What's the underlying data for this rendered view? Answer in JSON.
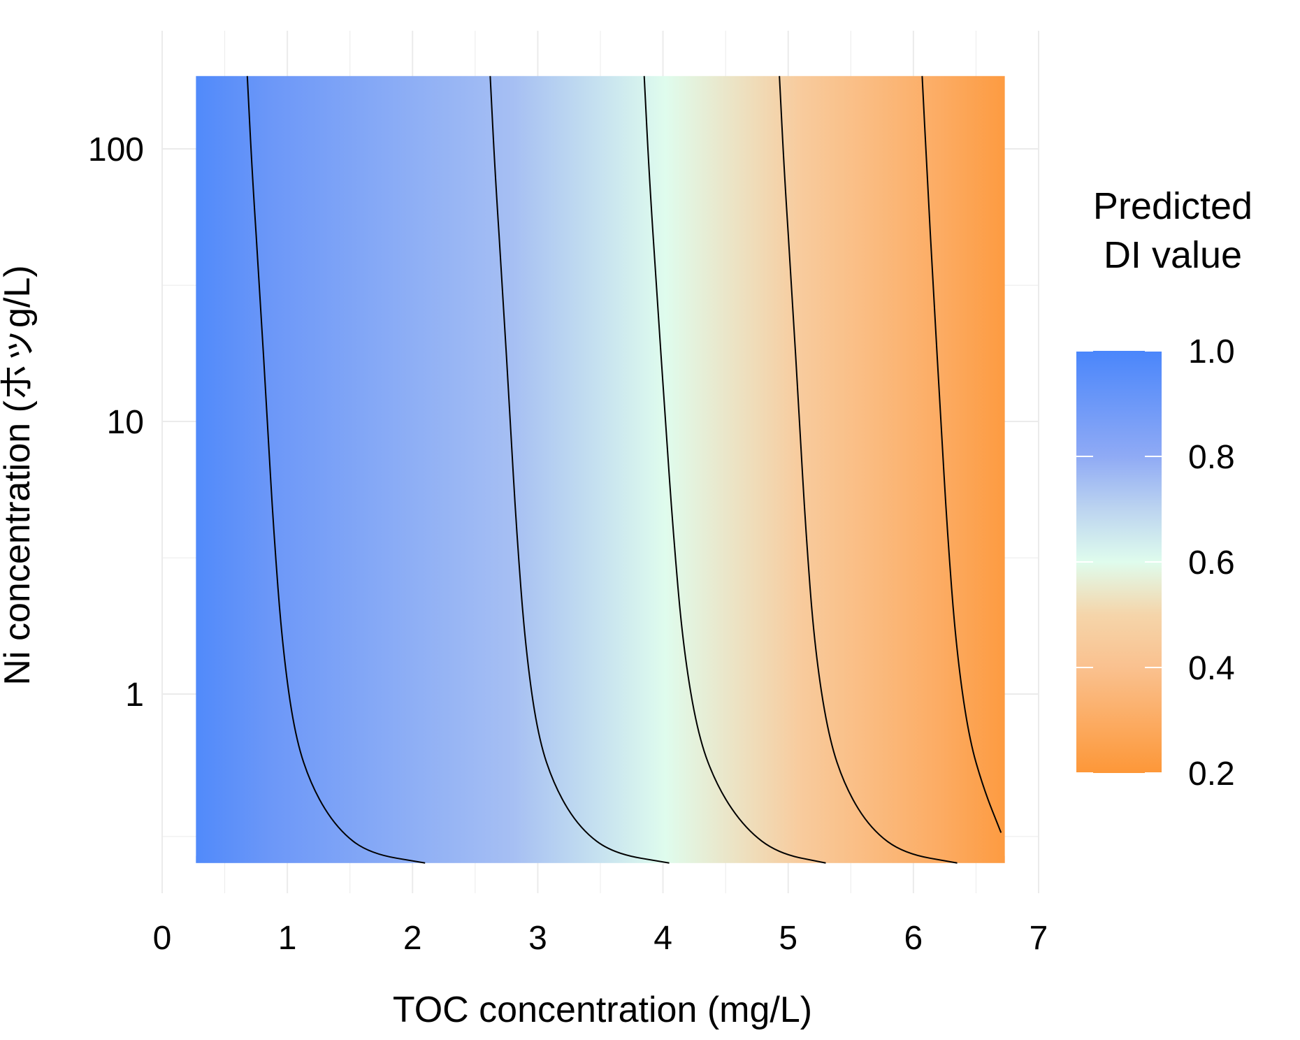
{
  "chart_data": {
    "type": "heatmap",
    "xlabel": "TOC concentration (mg/L)",
    "ylabel": "Ni concentration (ホッg/L)",
    "x_scale": "linear",
    "y_scale": "log10",
    "xlim": [
      0,
      7
    ],
    "ylim_visible": [
      0.15,
      200
    ],
    "x_ticks": [
      0,
      1,
      2,
      3,
      4,
      5,
      6,
      7
    ],
    "x_tick_labels": [
      "0",
      "1",
      "2",
      "3",
      "4",
      "5",
      "6",
      "7"
    ],
    "y_ticks": [
      1,
      10,
      100
    ],
    "y_tick_labels": [
      "1",
      "10",
      "100"
    ],
    "heatmap_extent": {
      "x": [
        0.27,
        6.73
      ],
      "y": [
        0.24,
        185
      ]
    },
    "grid": true,
    "legend": {
      "title_lines": [
        "Predicted",
        "DI value"
      ],
      "position": "right",
      "range": [
        0.2,
        1.0
      ],
      "ticks": [
        1.0,
        0.8,
        0.6,
        0.4,
        0.2
      ],
      "tick_labels": [
        "1.0",
        "0.8",
        "0.6",
        "0.4",
        "0.2"
      ],
      "colors": [
        {
          "value": 1.0,
          "color": "#4a86fb"
        },
        {
          "value": 0.8,
          "color": "#8faaf5"
        },
        {
          "value": 0.7,
          "color": "#bcd4f0"
        },
        {
          "value": 0.6,
          "color": "#dffced"
        },
        {
          "value": 0.5,
          "color": "#f5d5aa"
        },
        {
          "value": 0.4,
          "color": "#fac18f"
        },
        {
          "value": 0.2,
          "color": "#fd9738"
        }
      ]
    },
    "contours": [
      {
        "level": 0.9,
        "points": [
          [
            0.68,
            185
          ],
          [
            0.72,
            80
          ],
          [
            0.78,
            30
          ],
          [
            0.84,
            10
          ],
          [
            0.89,
            4
          ],
          [
            0.96,
            1.5
          ],
          [
            1.06,
            0.7
          ],
          [
            1.2,
            0.45
          ],
          [
            1.4,
            0.32
          ],
          [
            1.65,
            0.26
          ],
          [
            2.1,
            0.24
          ]
        ]
      },
      {
        "level": 0.75,
        "points": [
          [
            2.62,
            185
          ],
          [
            2.66,
            80
          ],
          [
            2.72,
            30
          ],
          [
            2.78,
            10
          ],
          [
            2.83,
            4
          ],
          [
            2.9,
            1.5
          ],
          [
            3.0,
            0.7
          ],
          [
            3.14,
            0.45
          ],
          [
            3.34,
            0.32
          ],
          [
            3.6,
            0.26
          ],
          [
            4.05,
            0.24
          ]
        ]
      },
      {
        "level": 0.6,
        "points": [
          [
            3.85,
            185
          ],
          [
            3.89,
            80
          ],
          [
            3.95,
            30
          ],
          [
            4.02,
            10
          ],
          [
            4.08,
            4
          ],
          [
            4.16,
            1.5
          ],
          [
            4.28,
            0.7
          ],
          [
            4.44,
            0.45
          ],
          [
            4.66,
            0.32
          ],
          [
            4.92,
            0.26
          ],
          [
            5.3,
            0.24
          ]
        ]
      },
      {
        "level": 0.45,
        "points": [
          [
            4.93,
            185
          ],
          [
            4.97,
            80
          ],
          [
            5.03,
            30
          ],
          [
            5.09,
            10
          ],
          [
            5.14,
            4
          ],
          [
            5.21,
            1.5
          ],
          [
            5.32,
            0.7
          ],
          [
            5.46,
            0.45
          ],
          [
            5.66,
            0.32
          ],
          [
            5.92,
            0.26
          ],
          [
            6.35,
            0.24
          ]
        ]
      },
      {
        "level": 0.3,
        "points": [
          [
            6.07,
            185
          ],
          [
            6.11,
            80
          ],
          [
            6.16,
            30
          ],
          [
            6.22,
            10
          ],
          [
            6.27,
            4
          ],
          [
            6.34,
            1.5
          ],
          [
            6.44,
            0.7
          ],
          [
            6.56,
            0.45
          ],
          [
            6.7,
            0.31
          ]
        ]
      }
    ]
  }
}
